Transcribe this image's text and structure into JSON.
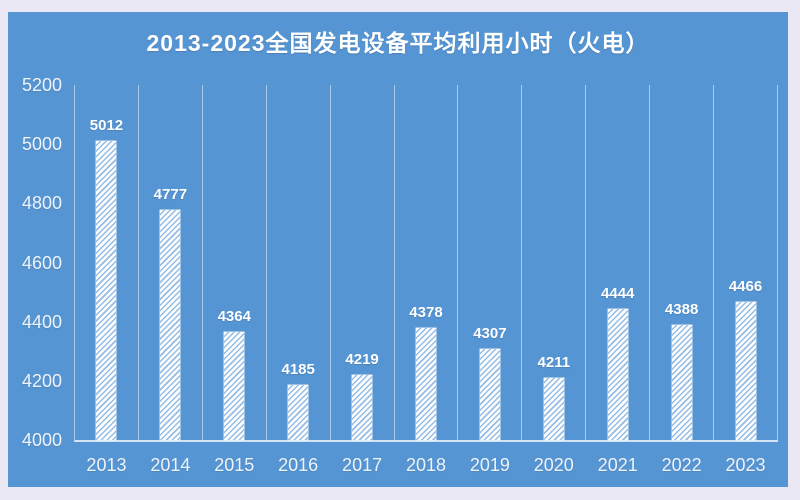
{
  "title": "2013-2023全国发电设备平均利用小时（火电）",
  "colors": {
    "outer_border": "#eae8f4",
    "panel_background": "#5695d3",
    "bar_fill": "#ffffff",
    "bar_hatch_stripe": "#93bce6",
    "text": "#ffffff",
    "gridline": "rgba(255,255,255,0.5)"
  },
  "chart_data": {
    "type": "bar",
    "title": "2013-2023全国发电设备平均利用小时（火电）",
    "categories": [
      "2013",
      "2014",
      "2015",
      "2016",
      "2017",
      "2018",
      "2019",
      "2020",
      "2021",
      "2022",
      "2023"
    ],
    "values": [
      5012,
      4777,
      4364,
      4185,
      4219,
      4378,
      4307,
      4211,
      4444,
      4388,
      4466
    ],
    "xlabel": "",
    "ylabel": "",
    "ylim": [
      4000,
      5200
    ],
    "yticks": [
      5200,
      5000,
      4800,
      4600,
      4400,
      4200,
      4000
    ],
    "grid": "vertical category separator lines only",
    "legend": "none",
    "bar_style": "white diagonal hatch (/) on blue background",
    "data_labels": "above each bar, white bold"
  }
}
